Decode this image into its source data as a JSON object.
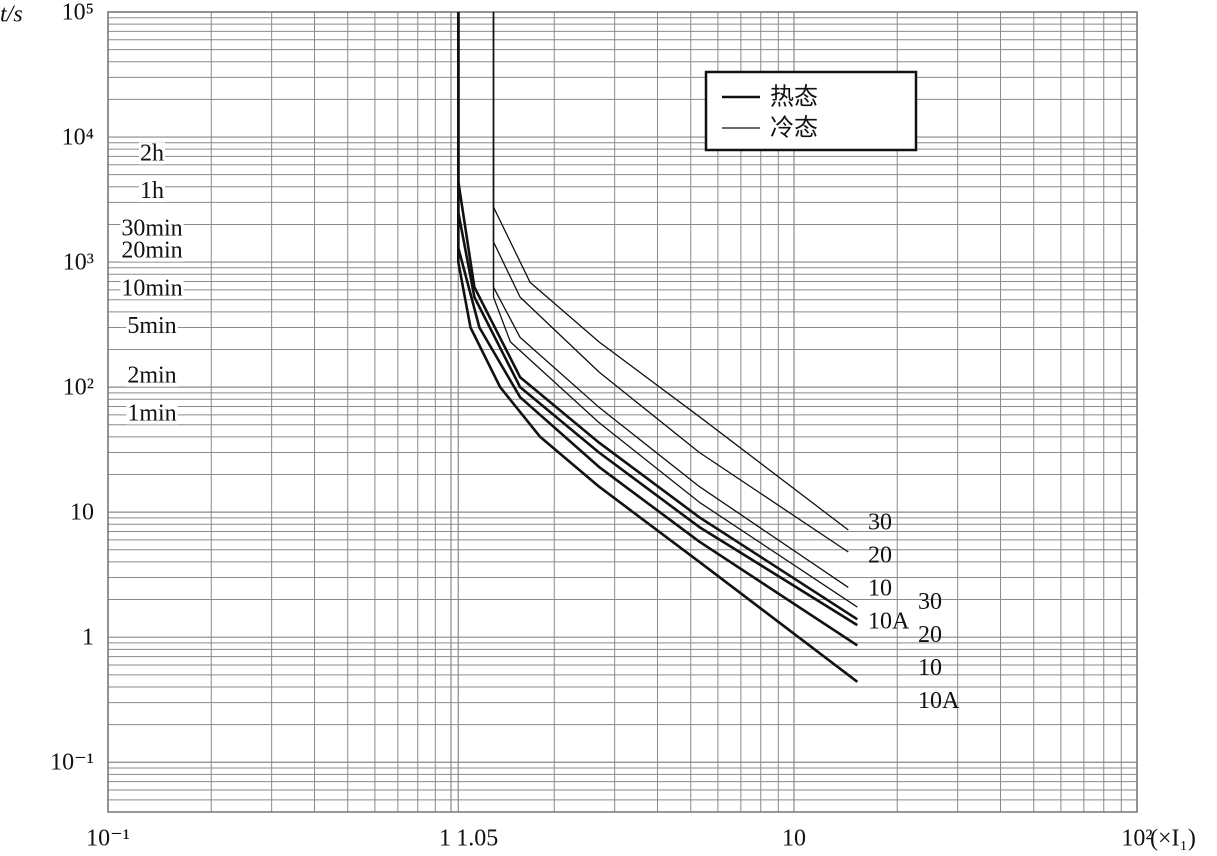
{
  "chart_data": {
    "type": "line",
    "y_label": "t/s",
    "x_label": "(×I₁)",
    "log_x": true,
    "log_y": true,
    "grid": true,
    "minor_grid": true,
    "xlim": [
      0.1,
      100
    ],
    "ylim": [
      0.04,
      100000
    ],
    "xticks": [
      {
        "value": 0.1,
        "label": "10⁻¹"
      },
      1,
      1.05,
      10,
      {
        "value": 100,
        "label": "10²"
      }
    ],
    "yticks": [
      {
        "value": 0.1,
        "label": "10⁻¹"
      },
      1,
      10,
      {
        "value": 100,
        "label": "10²"
      },
      {
        "value": 1000,
        "label": "10³"
      },
      {
        "value": 10000,
        "label": "10⁴"
      },
      {
        "value": 100000,
        "label": "10⁵"
      }
    ],
    "time_labels": [
      {
        "value": 7200,
        "label": "2h"
      },
      {
        "value": 3600,
        "label": "1h"
      },
      {
        "value": 1800,
        "label": "30min"
      },
      {
        "value": 1200,
        "label": "20min"
      },
      {
        "value": 600,
        "label": "10min"
      },
      {
        "value": 300,
        "label": "5min"
      },
      {
        "value": 120,
        "label": "2min"
      },
      {
        "value": 60,
        "label": "1min"
      }
    ],
    "legend_entries": [
      {
        "label": "热态",
        "line_width": 2.6
      },
      {
        "label": "冷态",
        "line_width": 1.3
      }
    ],
    "legend_position": "upper right",
    "color": "#111111",
    "series": [
      {
        "label": "30",
        "group": 1,
        "x": [
          1.33,
          1.33,
          1.7,
          2.7,
          5.3,
          14.4
        ],
        "values": [
          100000,
          2750,
          690,
          230,
          58,
          7.2
        ]
      },
      {
        "label": "20",
        "group": 1,
        "x": [
          1.33,
          1.33,
          1.59,
          2.7,
          5.3,
          14.4
        ],
        "values": [
          100000,
          1450,
          525,
          132,
          30,
          4.8
        ]
      },
      {
        "label": "10",
        "group": 1,
        "x": [
          1.33,
          1.33,
          1.59,
          2.7,
          5.3,
          14.4
        ],
        "values": [
          100000,
          630,
          250,
          69,
          16,
          2.5
        ]
      },
      {
        "label": "10A",
        "group": 1,
        "x": [
          1.33,
          1.33,
          1.49,
          2.7,
          5.3,
          15.3
        ],
        "values": [
          100000,
          525,
          230,
          52,
          12,
          1.74
        ]
      },
      {
        "label": "30",
        "group": 0,
        "x": [
          1.05,
          1.05,
          1.17,
          1.59,
          2.7,
          5.3,
          15.3
        ],
        "values": [
          100000,
          4400,
          630,
          120,
          36,
          9.1,
          1.39
        ]
      },
      {
        "label": "20",
        "group": 0,
        "x": [
          1.05,
          1.05,
          1.17,
          1.59,
          2.7,
          5.3,
          15.3
        ],
        "values": [
          100000,
          2500,
          525,
          100,
          30,
          7.6,
          1.25
        ]
      },
      {
        "label": "10",
        "group": 0,
        "x": [
          1.05,
          1.05,
          1.21,
          1.59,
          2.7,
          5.3,
          15.3
        ],
        "values": [
          100000,
          1300,
          300,
          83,
          23,
          5.8,
          0.86
        ]
      },
      {
        "label": "10A",
        "group": 0,
        "x": [
          1.05,
          1.05,
          1.14,
          1.39,
          1.82,
          2.7,
          5.3,
          15.3
        ],
        "values": [
          100000,
          1000,
          300,
          100,
          40,
          16,
          4.0,
          0.44
        ]
      }
    ]
  }
}
